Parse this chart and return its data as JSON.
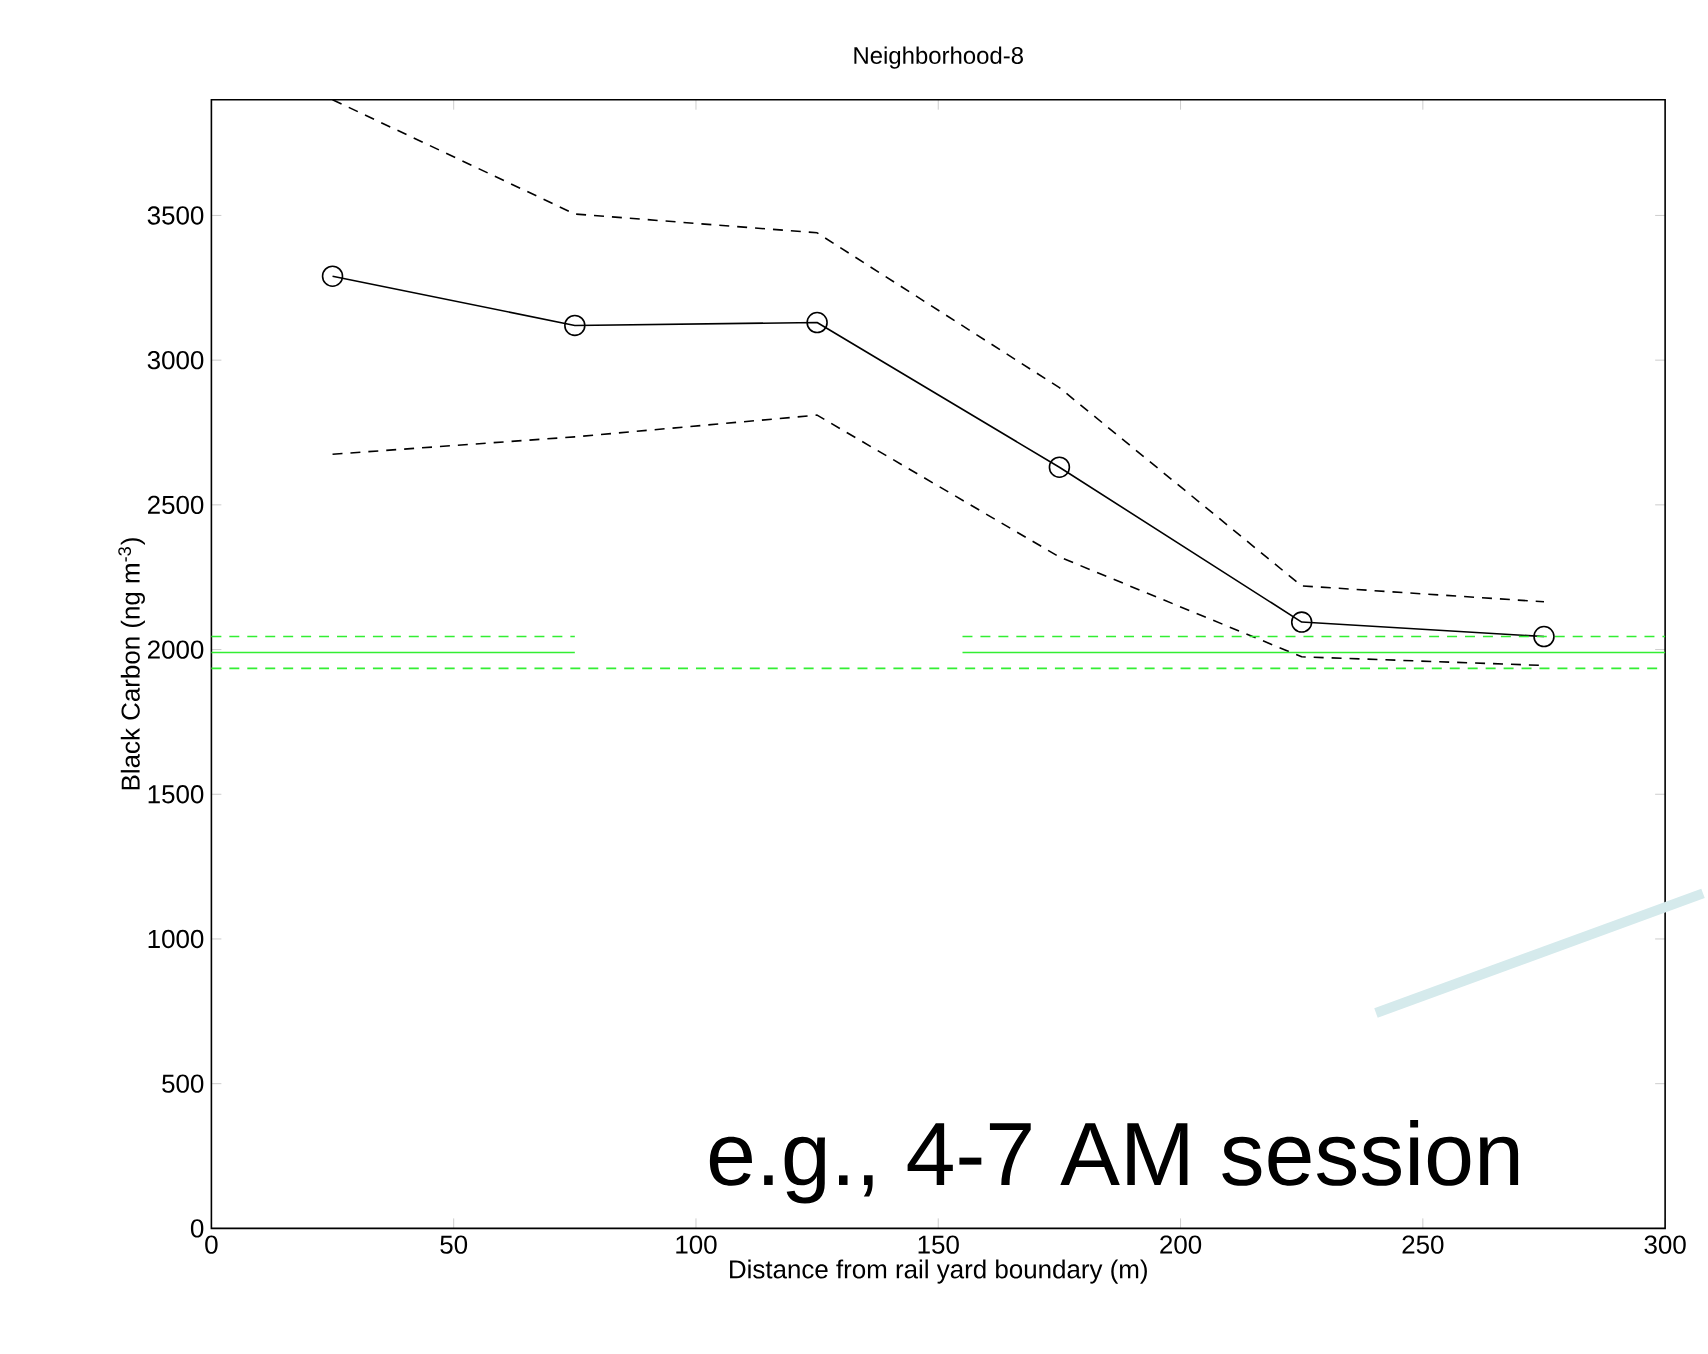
{
  "chart_data": {
    "type": "line",
    "title": "Neighborhood-8",
    "xlabel": "Distance from rail yard boundary (m)",
    "ylabel": "Black Carbon (ng m$^{-3}$)",
    "xlim": [
      0,
      300
    ],
    "ylim": [
      0,
      3900
    ],
    "xticks": [
      0,
      50,
      100,
      150,
      200,
      250,
      300
    ],
    "yticks": [
      0,
      500,
      1000,
      1500,
      2000,
      2500,
      3000,
      3500
    ],
    "series": [
      {
        "x": [
          25,
          75,
          125,
          175,
          225,
          275
        ],
        "values": [
          3290,
          3120,
          3130,
          2630,
          2095,
          2045
        ],
        "color": "#000000",
        "marker": "circle",
        "line_style": "solid"
      },
      {
        "x": [
          25,
          75,
          125,
          175,
          225,
          275
        ],
        "values": [
          3900,
          3505,
          3440,
          2905,
          2220,
          2165
        ],
        "color": "#000000",
        "marker": "none",
        "line_style": "dashed"
      },
      {
        "x": [
          25,
          75,
          125,
          175,
          225,
          275
        ],
        "values": [
          2675,
          2735,
          2810,
          2320,
          1975,
          1945
        ],
        "color": "#000000",
        "marker": "none",
        "line_style": "dashed"
      },
      {
        "x": [
          0,
          75,
          115,
          155,
          300
        ],
        "values": [
          1990,
          1990,
          null,
          1990,
          1990
        ],
        "color": "#33ee33",
        "marker": "none",
        "line_style": "solid"
      },
      {
        "x": [
          0,
          75,
          115,
          155,
          300
        ],
        "values": [
          2045,
          2045,
          null,
          2045,
          2045
        ],
        "color": "#33ee33",
        "marker": "none",
        "line_style": "dashed"
      },
      {
        "x": [
          0,
          300
        ],
        "values": [
          1935,
          1935
        ],
        "color": "#33ee33",
        "marker": "none",
        "line_style": "dashed"
      }
    ],
    "annotations": [
      "e.g., 4-7 AM session"
    ]
  }
}
